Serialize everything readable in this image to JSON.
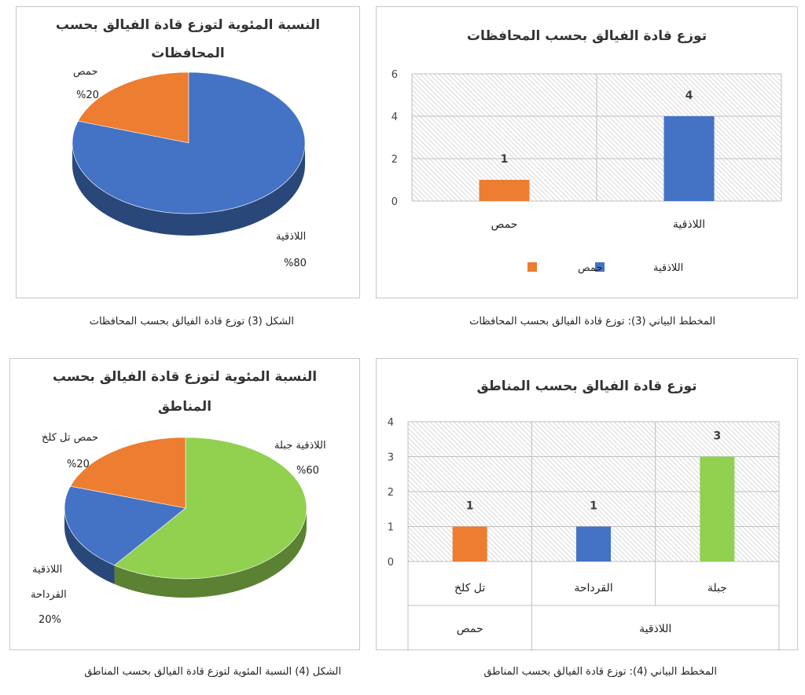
{
  "colors": {
    "orange": "#ED7D31",
    "blue": "#4472C4",
    "green": "#92D050",
    "grid": "#bfbfbf"
  },
  "captions": {
    "pie1": "الشكل (3) توزع قادة الفيالق بحسب المحافظات",
    "bar1": "المخطط البياني (3): توزع قادة الفيالق بحسب المحافظات",
    "pie2": "الشكل (4) النسبة المئوية لتوزع قادة الفيالق بحسب المناطق",
    "bar2": "المخطط البياني (4): توزع قادة الفيالق بحسب المناطق"
  },
  "pie1": {
    "title_line1": "النسبة المئوية لتوزع قادة الفيالق بحسب",
    "title_line2": "المحافظات",
    "labels": [
      {
        "name": "حمص",
        "pct": "%20"
      },
      {
        "name": "اللاذقية",
        "pct": "%80"
      }
    ]
  },
  "pie2": {
    "title_line1": "النسبة المئوية لتوزع قادة الفيالق بحسب",
    "title_line2": "المناطق",
    "labels": [
      {
        "name": "اللاذقية جبلة",
        "pct": "%60"
      },
      {
        "name": "حمص تل كلخ",
        "pct": "%20"
      },
      {
        "name_l1": "اللاذقية",
        "name_l2": "القرداحة",
        "pct": "20%"
      }
    ]
  },
  "bar1": {
    "title": "توزع قادة الفيالق بحسب المحافظات",
    "legend": [
      "اللاذقية",
      "حمص"
    ]
  },
  "bar2": {
    "title": "توزع قادة الفيالق بحسب المناطق"
  },
  "chart_data": [
    {
      "type": "pie",
      "title": "النسبة المئوية لتوزع قادة الفيالق بحسب المحافظات",
      "slices": [
        {
          "label": "اللاذقية",
          "value": 80,
          "color": "#4472C4"
        },
        {
          "label": "حمص",
          "value": 20,
          "color": "#ED7D31"
        }
      ]
    },
    {
      "type": "bar",
      "title": "توزع قادة الفيالق بحسب المحافظات",
      "categories": [
        "اللاذقية",
        "حمص"
      ],
      "series": [
        {
          "name": "اللاذقية",
          "values": [
            4,
            null
          ],
          "color": "#4472C4"
        },
        {
          "name": "حمص",
          "values": [
            null,
            1
          ],
          "color": "#ED7D31"
        }
      ],
      "data_labels": [
        4,
        1
      ],
      "ylim": [
        0,
        6
      ],
      "yticks": [
        0,
        2,
        4,
        6
      ],
      "legend": "bottom",
      "grid": true
    },
    {
      "type": "pie",
      "title": "النسبة المئوية لتوزع قادة الفيالق بحسب المناطق",
      "slices": [
        {
          "label": "اللاذقية جبلة",
          "value": 60,
          "color": "#92D050"
        },
        {
          "label": "اللاذقية القرداحة",
          "value": 20,
          "color": "#4472C4"
        },
        {
          "label": "حمص تل كلخ",
          "value": 20,
          "color": "#ED7D31"
        }
      ]
    },
    {
      "type": "bar",
      "title": "توزع قادة الفيالق بحسب المناطق",
      "categories": [
        "جبلة",
        "القرداحة",
        "تل كلخ"
      ],
      "groups": [
        {
          "label": "اللاذقية",
          "categories": [
            "جبلة",
            "القرداحة"
          ]
        },
        {
          "label": "حمص",
          "categories": [
            "تل كلخ"
          ]
        }
      ],
      "values": [
        3,
        1,
        1
      ],
      "colors": [
        "#92D050",
        "#4472C4",
        "#ED7D31"
      ],
      "ylim": [
        0,
        4
      ],
      "yticks": [
        0,
        1,
        2,
        3,
        4
      ],
      "grid": true
    }
  ]
}
